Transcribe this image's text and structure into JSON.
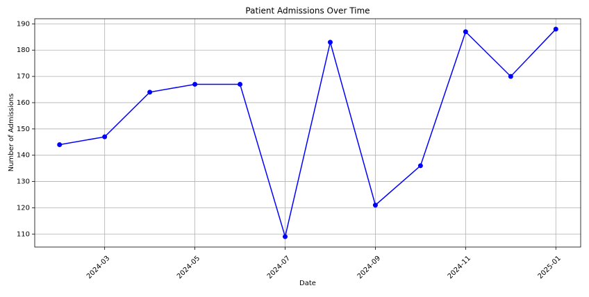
{
  "chart_data": {
    "type": "line",
    "title": "Patient Admissions Over Time",
    "x_label": "Date",
    "y_label": "Number of Admissions",
    "x": [
      "2024-02",
      "2024-03",
      "2024-04",
      "2024-05",
      "2024-06",
      "2024-07",
      "2024-08",
      "2024-09",
      "2024-10",
      "2024-11",
      "2024-12",
      "2025-01"
    ],
    "series": [
      {
        "name": "Admissions",
        "color": "#0000ff",
        "values": [
          144,
          147,
          164,
          167,
          167,
          109,
          183,
          121,
          136,
          187,
          170,
          188
        ]
      }
    ],
    "ylim": [
      105.05,
      191.95
    ],
    "yticks": [
      110,
      120,
      130,
      140,
      150,
      160,
      170,
      180,
      190
    ],
    "xticks": [
      "2024-03",
      "2024-05",
      "2024-07",
      "2024-09",
      "2024-11",
      "2025-01"
    ],
    "grid": true
  }
}
